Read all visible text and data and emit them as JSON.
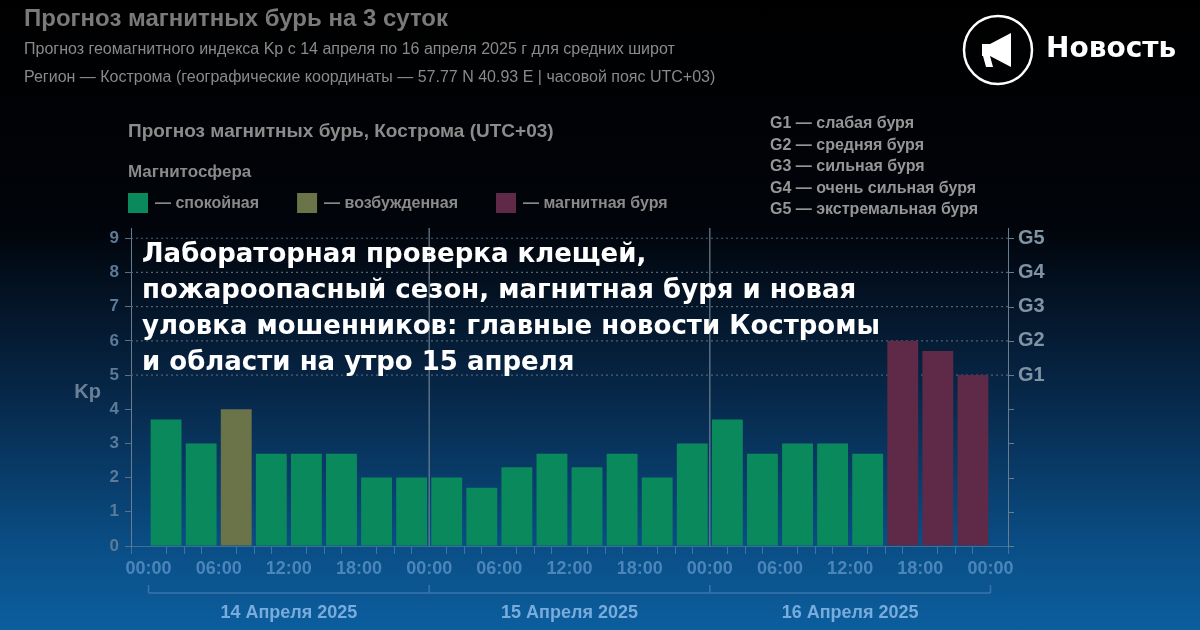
{
  "chart_data": {
    "type": "bar",
    "title": "Прогноз магнитных бурь на 3 суток",
    "subtitle": "Прогноз геомагнитного индекса Kp с 14 апреля по 16 апреля 2025 г для средних широт\nРегион — Кострома (географические координаты — 57.77 N 40.93 E | часовой пояс UTC+03)",
    "ylabel": "Kp",
    "legend_title": "Магнитосфера",
    "legend": "top left",
    "x": [
      "2025-04-14T01:30",
      "2025-04-14T04:30",
      "2025-04-14T07:30",
      "2025-04-14T10:30",
      "2025-04-14T13:30",
      "2025-04-14T16:30",
      "2025-04-14T19:30",
      "2025-04-14T22:30",
      "2025-04-15T01:30",
      "2025-04-15T04:30",
      "2025-04-15T07:30",
      "2025-04-15T10:30",
      "2025-04-15T13:30",
      "2025-04-15T16:30",
      "2025-04-15T19:30",
      "2025-04-15T22:30",
      "2025-04-16T01:30",
      "2025-04-16T04:30",
      "2025-04-16T07:30",
      "2025-04-16T10:30",
      "2025-04-16T13:30",
      "2025-04-16T16:30",
      "2025-04-16T19:30",
      "2025-04-16T22:30"
    ],
    "series": [
      {
        "name": "— спокойная",
        "color": "#0a8a5c",
        "values": [
          3.7,
          3,
          null,
          2.7,
          2.7,
          2.7,
          2,
          2,
          2,
          1.7,
          2.3,
          2.7,
          2.3,
          2.7,
          2,
          3,
          3.7,
          2.7,
          3,
          3,
          2.7,
          null,
          null,
          null
        ]
      },
      {
        "name": "— возбужденная",
        "color": "#6b7448",
        "values": [
          null,
          null,
          4,
          null,
          null,
          null,
          null,
          null,
          null,
          null,
          null,
          null,
          null,
          null,
          null,
          null,
          null,
          null,
          null,
          null,
          null,
          null,
          null,
          null
        ]
      },
      {
        "name": "— магнитная буря",
        "color": "#5f2a48",
        "values": [
          null,
          null,
          null,
          null,
          null,
          null,
          null,
          null,
          null,
          null,
          null,
          null,
          null,
          null,
          null,
          null,
          null,
          null,
          null,
          null,
          null,
          6,
          5.7,
          5
        ]
      }
    ],
    "xlim": [
      "2025-04-14T00:00",
      "2025-04-17T00:00"
    ],
    "xticks": [
      {
        "value": "2025-04-14T00:00",
        "label": "00:00"
      },
      {
        "value": "2025-04-14T03:00",
        "label": null
      },
      {
        "value": "2025-04-14T06:00",
        "label": "06:00"
      },
      {
        "value": "2025-04-14T09:00",
        "label": null
      },
      {
        "value": "2025-04-14T12:00",
        "label": "12:00"
      },
      {
        "value": "2025-04-14T15:00",
        "label": null
      },
      {
        "value": "2025-04-14T18:00",
        "label": "18:00"
      },
      {
        "value": "2025-04-14T21:00",
        "label": null
      },
      {
        "value": "2025-04-15T00:00",
        "label": "00:00"
      },
      {
        "value": "2025-04-15T03:00",
        "label": null
      },
      {
        "value": "2025-04-15T06:00",
        "label": "06:00"
      },
      {
        "value": "2025-04-15T09:00",
        "label": null
      },
      {
        "value": "2025-04-15T12:00",
        "label": "12:00"
      },
      {
        "value": "2025-04-15T15:00",
        "label": null
      },
      {
        "value": "2025-04-15T18:00",
        "label": "18:00"
      },
      {
        "value": "2025-04-15T21:00",
        "label": null
      },
      {
        "value": "2025-04-16T00:00",
        "label": "00:00"
      },
      {
        "value": "2025-04-16T03:00",
        "label": null
      },
      {
        "value": "2025-04-16T06:00",
        "label": "06:00"
      },
      {
        "value": "2025-04-16T09:00",
        "label": null
      },
      {
        "value": "2025-04-16T12:00",
        "label": "12:00"
      },
      {
        "value": "2025-04-16T15:00",
        "label": null
      },
      {
        "value": "2025-04-16T18:00",
        "label": "18:00"
      },
      {
        "value": "2025-04-16T21:00",
        "label": null
      },
      {
        "value": "2025-04-17T00:00",
        "label": "00:00"
      }
    ],
    "ylim": [
      0,
      9.3
    ],
    "yticks": [
      0,
      1,
      2,
      3,
      4,
      5,
      6,
      7,
      8,
      9
    ],
    "ref_lines": [
      {
        "axis": "x",
        "value": "2025-04-15T00:00",
        "color": "#6f8191",
        "line_style": "solid"
      },
      {
        "axis": "x",
        "value": "2025-04-16T00:00",
        "color": "#6f8191",
        "line_style": "solid"
      },
      {
        "axis": "y",
        "value": 5,
        "label": "G1",
        "color": "#4f6274",
        "line_style": "dotted"
      },
      {
        "axis": "y",
        "value": 6,
        "label": "G2",
        "color": "#4f6274",
        "line_style": "dotted"
      },
      {
        "axis": "y",
        "value": 7,
        "label": "G3",
        "color": "#4f6274",
        "line_style": "dotted"
      },
      {
        "axis": "y",
        "value": 8,
        "label": "G4",
        "color": "#4f6274",
        "line_style": "dotted"
      },
      {
        "axis": "y",
        "value": 9,
        "label": "G5",
        "color": "#4f6274",
        "line_style": "dotted"
      }
    ],
    "annotations": [
      "Прогноз магнитных бурь, Кострома (UTC+03)",
      "G1 — слабая буря",
      "G2 — средняя буря",
      "G3 — сильная буря",
      "G4 — очень сильная буря",
      "G5 — экстремальная буря",
      "Лабораторная проверка клещей, пожароопасный сезон, магнитная буря и новая уловка мошенников: главные новости Костромы и области на утро 15 апреля",
      "Новость",
      "14 Апреля 2025",
      "15 Апреля 2025",
      "16 Апреля 2025"
    ]
  }
}
